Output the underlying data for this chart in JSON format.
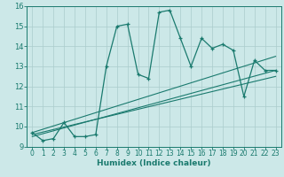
{
  "xlabel": "Humidex (Indice chaleur)",
  "bg_color": "#cce8e8",
  "grid_color": "#aacccc",
  "line_color": "#1a7a6e",
  "xlim": [
    -0.5,
    23.5
  ],
  "ylim": [
    9,
    16
  ],
  "xticks": [
    0,
    1,
    2,
    3,
    4,
    5,
    6,
    7,
    8,
    9,
    10,
    11,
    12,
    13,
    14,
    15,
    16,
    17,
    18,
    19,
    20,
    21,
    22,
    23
  ],
  "yticks": [
    9,
    10,
    11,
    12,
    13,
    14,
    15,
    16
  ],
  "line1_x": [
    0,
    1,
    2,
    3,
    4,
    5,
    6,
    7,
    8,
    9,
    10,
    11,
    12,
    13,
    14,
    15,
    16,
    17,
    18,
    19,
    20,
    21,
    22,
    23
  ],
  "line1_y": [
    9.7,
    9.3,
    9.4,
    10.2,
    9.5,
    9.5,
    9.6,
    13.0,
    15.0,
    15.1,
    12.6,
    12.4,
    15.7,
    15.8,
    14.4,
    13.0,
    14.4,
    13.9,
    14.1,
    13.8,
    11.5,
    13.3,
    12.8,
    12.8
  ],
  "trend1_x": [
    0,
    23
  ],
  "trend1_y": [
    9.7,
    13.5
  ],
  "trend2_x": [
    0,
    23
  ],
  "trend2_y": [
    9.6,
    12.5
  ],
  "trend3_x": [
    0,
    23
  ],
  "trend3_y": [
    9.5,
    12.8
  ],
  "xlabel_fontsize": 6.5,
  "tick_fontsize": 5.5
}
